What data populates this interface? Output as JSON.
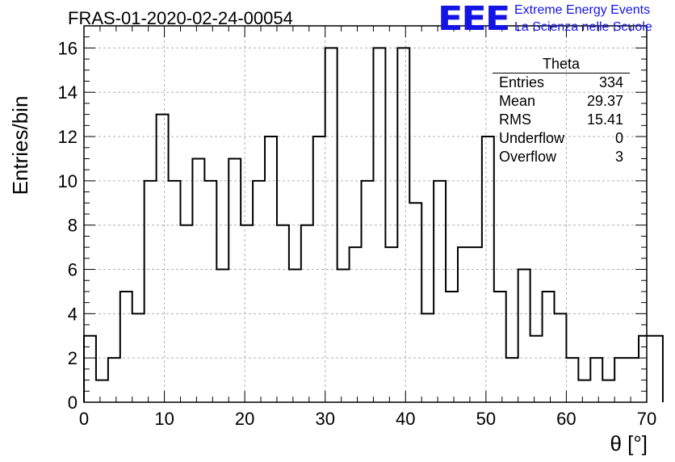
{
  "header": {
    "title": "FRAS-01-2020-02-24-00054",
    "logo_text": "EEE",
    "logo_line1": "Extreme Energy Events",
    "logo_line2": "La Scienza nelle Scuole"
  },
  "stats_box": {
    "title": "Theta",
    "rows": [
      {
        "label": "Entries",
        "value": "334"
      },
      {
        "label": "Mean",
        "value": "29.37"
      },
      {
        "label": "RMS",
        "value": "15.41"
      },
      {
        "label": "Underflow",
        "value": "0"
      },
      {
        "label": "Overflow",
        "value": "3"
      }
    ]
  },
  "chart_data": {
    "type": "bar",
    "histogram": true,
    "bin_width": 1.5,
    "x_start": 0,
    "bin_edges_from": 0,
    "values": [
      3,
      1,
      2,
      5,
      4,
      10,
      13,
      10,
      8,
      11,
      10,
      6,
      11,
      8,
      10,
      12,
      8,
      6,
      8,
      12,
      16,
      6,
      7,
      10,
      16,
      7,
      16,
      9,
      4,
      10,
      5,
      7,
      7,
      12,
      5,
      2,
      6,
      3,
      5,
      4,
      2,
      1,
      2,
      1,
      2,
      2,
      3,
      3
    ],
    "xlabel": "θ [°]",
    "ylabel": "Entries/bin",
    "xlim": [
      0,
      70
    ],
    "ylim": [
      0,
      17
    ],
    "xticks": [
      "0",
      "10",
      "20",
      "30",
      "40",
      "50",
      "60",
      "70"
    ],
    "yticks": [
      "0",
      "2",
      "4",
      "6",
      "8",
      "10",
      "12",
      "14",
      "16"
    ],
    "grid": true,
    "colors": {
      "line": "#000000",
      "grid": "#b0b0b0",
      "logo": "#1414e6"
    }
  }
}
